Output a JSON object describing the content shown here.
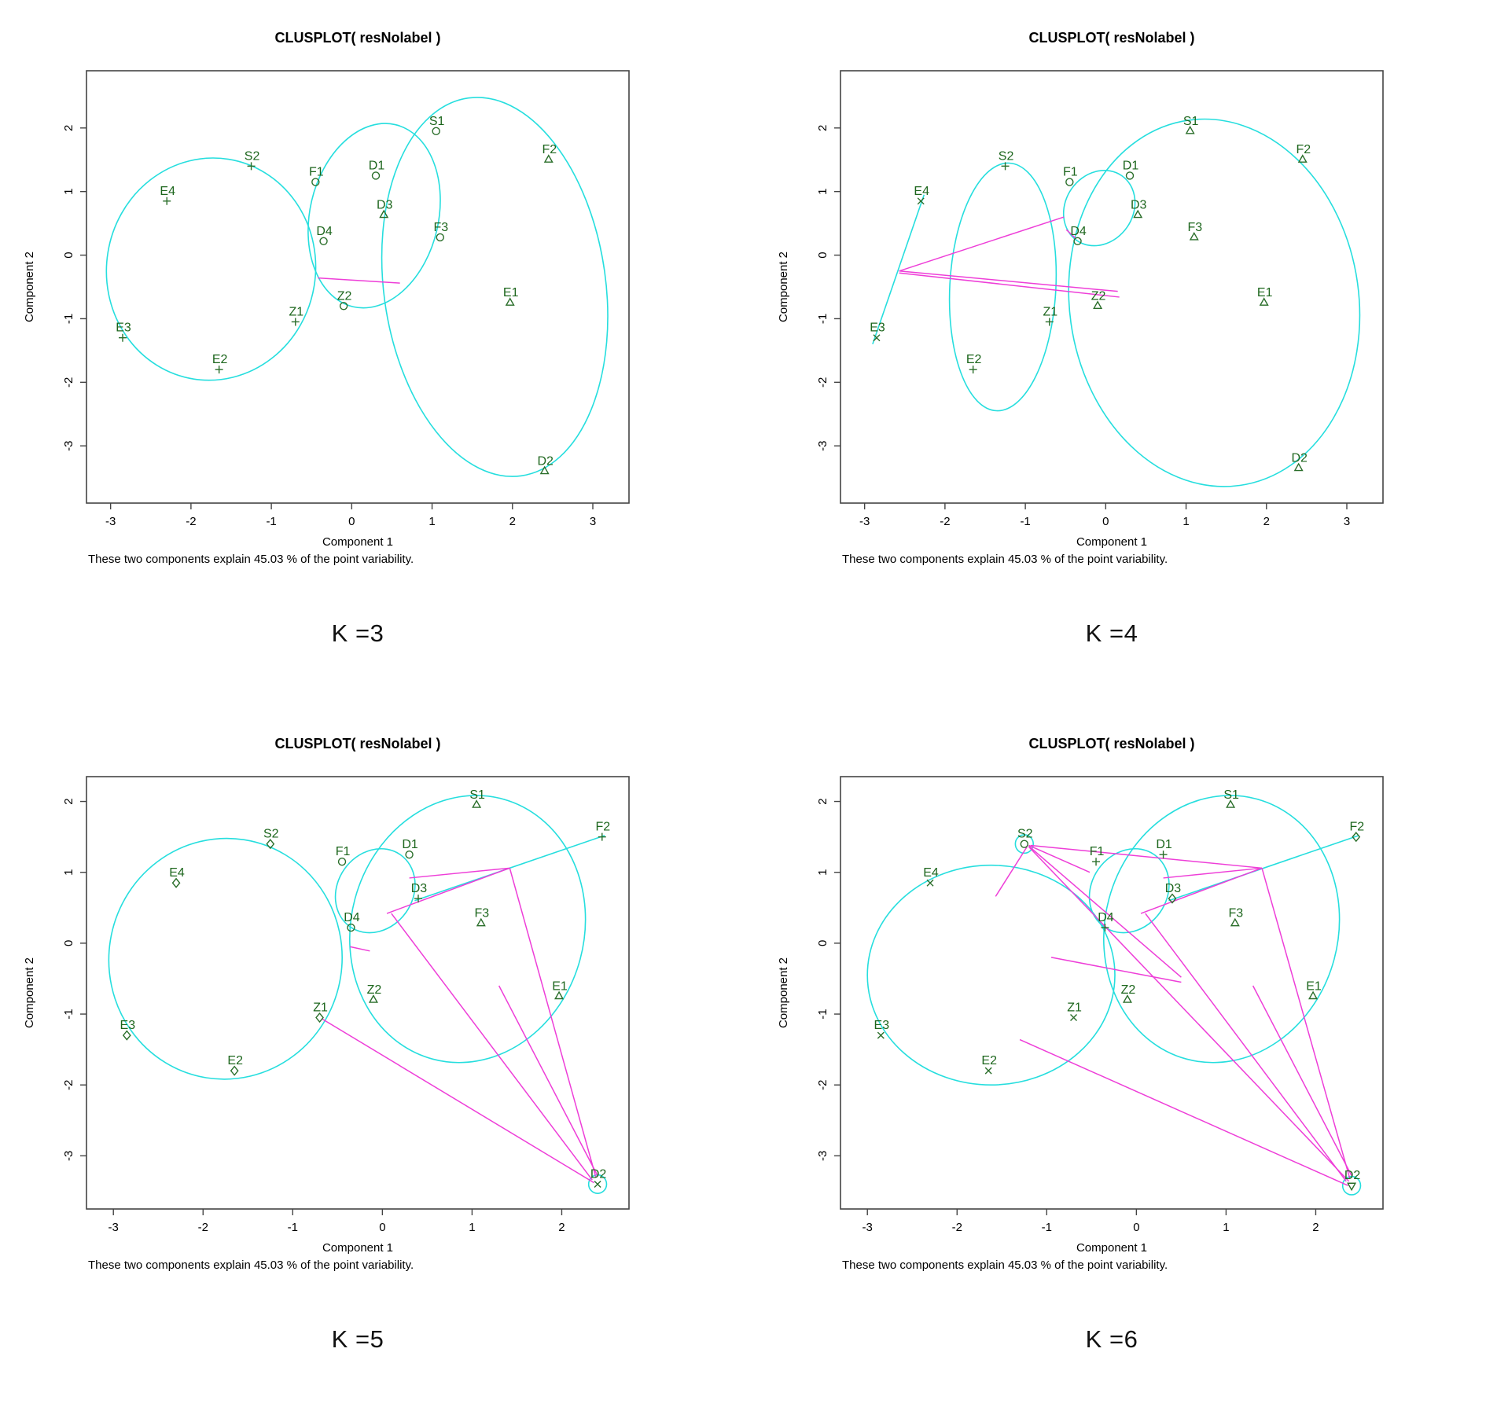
{
  "chart_data": {
    "type": "scatter",
    "description": "Four R clusplot cluster plots (PAM results) for K=3,4,5,6 on the same 15 observations",
    "colors": {
      "ellipse_cyan": "#26dede",
      "link_magenta": "#ee3ed8",
      "label_green": "#1d661d",
      "marker_green": "#2a6e2a",
      "axis": "#444444",
      "text": "#000000"
    },
    "plots": [
      {
        "k_label": "K =3",
        "title": "CLUSPLOT( resNolabel )",
        "xlabel": "Component 1",
        "ylabel": "Component 2",
        "caption": "These two components explain 45.03 % of the point variability.",
        "xlim": [
          -3.3,
          3.45
        ],
        "ylim": [
          -3.9,
          2.9
        ],
        "x_ticks": [
          -3,
          -2,
          -1,
          0,
          1,
          2,
          3
        ],
        "y_ticks": [
          2,
          1,
          0,
          -1,
          -2,
          -3
        ],
        "points": [
          {
            "label": "S1",
            "x": 1.05,
            "y": 1.95,
            "marker": "circle"
          },
          {
            "label": "F2",
            "x": 2.45,
            "y": 1.5,
            "marker": "triangle"
          },
          {
            "label": "S2",
            "x": -1.25,
            "y": 1.4,
            "marker": "plus"
          },
          {
            "label": "D1",
            "x": 0.3,
            "y": 1.25,
            "marker": "circle"
          },
          {
            "label": "F1",
            "x": -0.45,
            "y": 1.15,
            "marker": "circle"
          },
          {
            "label": "E4",
            "x": -2.3,
            "y": 0.85,
            "marker": "plus"
          },
          {
            "label": "D3",
            "x": 0.4,
            "y": 0.63,
            "marker": "triangle"
          },
          {
            "label": "F3",
            "x": 1.1,
            "y": 0.28,
            "marker": "circle"
          },
          {
            "label": "D4",
            "x": -0.35,
            "y": 0.22,
            "marker": "circle"
          },
          {
            "label": "E1",
            "x": 1.97,
            "y": -0.75,
            "marker": "triangle"
          },
          {
            "label": "Z2",
            "x": -0.1,
            "y": -0.8,
            "marker": "circle"
          },
          {
            "label": "Z1",
            "x": -0.7,
            "y": -1.05,
            "marker": "plus"
          },
          {
            "label": "E3",
            "x": -2.85,
            "y": -1.3,
            "marker": "plus"
          },
          {
            "label": "E2",
            "x": -1.65,
            "y": -1.8,
            "marker": "plus"
          },
          {
            "label": "D2",
            "x": 2.4,
            "y": -3.4,
            "marker": "triangle"
          }
        ],
        "ellipses": [
          {
            "cx": -1.75,
            "cy": -0.22,
            "rx": 1.3,
            "ry": 1.75,
            "rot": 9
          },
          {
            "cx": 0.28,
            "cy": 0.62,
            "rx": 0.8,
            "ry": 1.47,
            "rot": 13
          },
          {
            "cx": 1.78,
            "cy": -0.5,
            "rx": 1.38,
            "ry": 3.0,
            "rot": -8
          }
        ],
        "cluster_lines": [],
        "center_links": [
          [
            -0.42,
            -0.36,
            0.6,
            -0.44
          ]
        ]
      },
      {
        "k_label": "K =4",
        "title": "CLUSPLOT( resNolabel )",
        "xlabel": "Component 1",
        "ylabel": "Component 2",
        "caption": "These two components explain 45.03 % of the point variability.",
        "xlim": [
          -3.3,
          3.45
        ],
        "ylim": [
          -3.9,
          2.9
        ],
        "x_ticks": [
          -3,
          -2,
          -1,
          0,
          1,
          2,
          3
        ],
        "y_ticks": [
          2,
          1,
          0,
          -1,
          -2,
          -3
        ],
        "points": [
          {
            "label": "S1",
            "x": 1.05,
            "y": 1.95,
            "marker": "triangle"
          },
          {
            "label": "F2",
            "x": 2.45,
            "y": 1.5,
            "marker": "triangle"
          },
          {
            "label": "S2",
            "x": -1.25,
            "y": 1.4,
            "marker": "plus"
          },
          {
            "label": "D1",
            "x": 0.3,
            "y": 1.25,
            "marker": "circle"
          },
          {
            "label": "F1",
            "x": -0.45,
            "y": 1.15,
            "marker": "circle"
          },
          {
            "label": "E4",
            "x": -2.3,
            "y": 0.85,
            "marker": "cross"
          },
          {
            "label": "D3",
            "x": 0.4,
            "y": 0.63,
            "marker": "triangle"
          },
          {
            "label": "F3",
            "x": 1.1,
            "y": 0.28,
            "marker": "triangle"
          },
          {
            "label": "D4",
            "x": -0.35,
            "y": 0.22,
            "marker": "circle"
          },
          {
            "label": "E1",
            "x": 1.97,
            "y": -0.75,
            "marker": "triangle"
          },
          {
            "label": "Z2",
            "x": -0.1,
            "y": -0.8,
            "marker": "triangle"
          },
          {
            "label": "Z1",
            "x": -0.7,
            "y": -1.05,
            "marker": "plus"
          },
          {
            "label": "E3",
            "x": -2.85,
            "y": -1.3,
            "marker": "cross"
          },
          {
            "label": "E2",
            "x": -1.65,
            "y": -1.8,
            "marker": "plus"
          },
          {
            "label": "D2",
            "x": 2.4,
            "y": -3.35,
            "marker": "triangle"
          }
        ],
        "ellipses": [
          {
            "cx": -1.28,
            "cy": -0.5,
            "rx": 0.66,
            "ry": 1.95,
            "rot": 3
          },
          {
            "cx": -0.08,
            "cy": 0.74,
            "rx": 0.42,
            "ry": 0.62,
            "rot": 35
          },
          {
            "cx": 1.35,
            "cy": -0.75,
            "rx": 1.8,
            "ry": 2.9,
            "rot": -8
          }
        ],
        "cluster_lines": [
          [
            -2.26,
            0.95,
            -2.9,
            -1.4
          ]
        ],
        "center_links": [
          [
            -2.57,
            -0.25,
            -0.52,
            0.6
          ],
          [
            -0.49,
            0.4,
            -0.37,
            0.26
          ],
          [
            -2.57,
            -0.25,
            0.15,
            -0.57
          ],
          [
            -2.57,
            -0.28,
            0.17,
            -0.66
          ]
        ]
      },
      {
        "k_label": "K =5",
        "title": "CLUSPLOT( resNolabel )",
        "xlabel": "Component 1",
        "ylabel": "Component 2",
        "caption": "These two components explain 45.03 % of the point variability.",
        "xlim": [
          -3.3,
          2.75
        ],
        "ylim": [
          -3.75,
          2.35
        ],
        "x_ticks": [
          -3,
          -2,
          -1,
          0,
          1,
          2
        ],
        "y_ticks": [
          2,
          1,
          0,
          -1,
          -2,
          -3
        ],
        "points": [
          {
            "label": "S1",
            "x": 1.05,
            "y": 1.95,
            "marker": "triangle"
          },
          {
            "label": "F2",
            "x": 2.45,
            "y": 1.5,
            "marker": "plus"
          },
          {
            "label": "S2",
            "x": -1.25,
            "y": 1.4,
            "marker": "diamond"
          },
          {
            "label": "D1",
            "x": 0.3,
            "y": 1.25,
            "marker": "circle"
          },
          {
            "label": "F1",
            "x": -0.45,
            "y": 1.15,
            "marker": "circle"
          },
          {
            "label": "E4",
            "x": -2.3,
            "y": 0.85,
            "marker": "diamond"
          },
          {
            "label": "D3",
            "x": 0.4,
            "y": 0.63,
            "marker": "plus"
          },
          {
            "label": "F3",
            "x": 1.1,
            "y": 0.28,
            "marker": "triangle"
          },
          {
            "label": "D4",
            "x": -0.35,
            "y": 0.22,
            "marker": "circle"
          },
          {
            "label": "E1",
            "x": 1.97,
            "y": -0.75,
            "marker": "triangle"
          },
          {
            "label": "Z2",
            "x": -0.1,
            "y": -0.8,
            "marker": "triangle"
          },
          {
            "label": "Z1",
            "x": -0.7,
            "y": -1.05,
            "marker": "diamond"
          },
          {
            "label": "E3",
            "x": -2.85,
            "y": -1.3,
            "marker": "diamond"
          },
          {
            "label": "E2",
            "x": -1.65,
            "y": -1.8,
            "marker": "diamond"
          },
          {
            "label": "D2",
            "x": 2.4,
            "y": -3.4,
            "marker": "cross"
          }
        ],
        "ellipses": [
          {
            "cx": -1.75,
            "cy": -0.22,
            "rx": 1.3,
            "ry": 1.7,
            "rot": 9
          },
          {
            "cx": -0.08,
            "cy": 0.74,
            "rx": 0.42,
            "ry": 0.62,
            "rot": 35
          },
          {
            "cx": 0.95,
            "cy": 0.2,
            "rx": 1.3,
            "ry": 1.9,
            "rot": 15
          },
          {
            "cx": 2.4,
            "cy": -3.4,
            "rx": 0.1,
            "ry": 0.13,
            "rot": 0
          }
        ],
        "cluster_lines": [
          [
            0.36,
            0.6,
            2.48,
            1.52
          ]
        ],
        "center_links": [
          [
            0.3,
            0.92,
            1.42,
            1.06
          ],
          [
            1.42,
            1.06,
            0.05,
            0.42
          ],
          [
            1.42,
            1.06,
            2.38,
            -3.3
          ],
          [
            -0.67,
            -1.07,
            2.36,
            -3.38
          ],
          [
            0.1,
            0.42,
            2.34,
            -3.34
          ],
          [
            1.3,
            -0.6,
            2.4,
            -3.28
          ],
          [
            -0.36,
            -0.05,
            -0.14,
            -0.11
          ]
        ]
      },
      {
        "k_label": "K =6",
        "title": "CLUSPLOT( resNolabel )",
        "xlabel": "Component 1",
        "ylabel": "Component 2",
        "caption": "These two components explain 45.03 % of the point variability.",
        "xlim": [
          -3.3,
          2.75
        ],
        "ylim": [
          -3.75,
          2.35
        ],
        "x_ticks": [
          -3,
          -2,
          -1,
          0,
          1,
          2
        ],
        "y_ticks": [
          2,
          1,
          0,
          -1,
          -2,
          -3
        ],
        "points": [
          {
            "label": "S1",
            "x": 1.05,
            "y": 1.95,
            "marker": "triangle"
          },
          {
            "label": "F2",
            "x": 2.45,
            "y": 1.5,
            "marker": "diamond"
          },
          {
            "label": "S2",
            "x": -1.25,
            "y": 1.4,
            "marker": "circle"
          },
          {
            "label": "D1",
            "x": 0.3,
            "y": 1.25,
            "marker": "plus"
          },
          {
            "label": "F1",
            "x": -0.45,
            "y": 1.15,
            "marker": "plus"
          },
          {
            "label": "E4",
            "x": -2.3,
            "y": 0.85,
            "marker": "cross"
          },
          {
            "label": "D3",
            "x": 0.4,
            "y": 0.63,
            "marker": "diamond"
          },
          {
            "label": "F3",
            "x": 1.1,
            "y": 0.28,
            "marker": "triangle"
          },
          {
            "label": "D4",
            "x": -0.35,
            "y": 0.22,
            "marker": "plus"
          },
          {
            "label": "E1",
            "x": 1.97,
            "y": -0.75,
            "marker": "triangle"
          },
          {
            "label": "Z2",
            "x": -0.1,
            "y": -0.8,
            "marker": "triangle"
          },
          {
            "label": "Z1",
            "x": -0.7,
            "y": -1.05,
            "marker": "cross"
          },
          {
            "label": "E3",
            "x": -2.85,
            "y": -1.3,
            "marker": "cross"
          },
          {
            "label": "E2",
            "x": -1.65,
            "y": -1.8,
            "marker": "cross"
          },
          {
            "label": "D2",
            "x": 2.4,
            "y": -3.42,
            "marker": "tri_down"
          }
        ],
        "ellipses": [
          {
            "cx": -1.62,
            "cy": -0.45,
            "rx": 1.38,
            "ry": 1.55,
            "rot": 0
          },
          {
            "cx": -1.25,
            "cy": 1.4,
            "rx": 0.1,
            "ry": 0.13,
            "rot": 0
          },
          {
            "cx": -0.08,
            "cy": 0.74,
            "rx": 0.42,
            "ry": 0.62,
            "rot": 35
          },
          {
            "cx": 0.95,
            "cy": 0.2,
            "rx": 1.3,
            "ry": 1.9,
            "rot": 15
          },
          {
            "cx": 2.4,
            "cy": -3.42,
            "rx": 0.1,
            "ry": 0.13,
            "rot": 0
          }
        ],
        "cluster_lines": [
          [
            0.36,
            0.6,
            2.48,
            1.52
          ]
        ],
        "center_links": [
          [
            -1.22,
            1.36,
            -1.57,
            0.66
          ],
          [
            -1.2,
            1.38,
            -0.52,
            1.0
          ],
          [
            -1.18,
            1.38,
            1.4,
            1.06
          ],
          [
            -1.2,
            1.36,
            2.37,
            -3.36
          ],
          [
            -1.2,
            1.37,
            0.5,
            -0.48
          ],
          [
            0.3,
            0.92,
            1.4,
            1.06
          ],
          [
            1.4,
            1.06,
            0.05,
            0.42
          ],
          [
            1.4,
            1.06,
            2.38,
            -3.32
          ],
          [
            -1.3,
            -1.36,
            2.36,
            -3.42
          ],
          [
            0.1,
            0.42,
            2.34,
            -3.36
          ],
          [
            1.3,
            -0.6,
            2.4,
            -3.28
          ],
          [
            -0.95,
            -0.2,
            0.5,
            -0.55
          ]
        ]
      }
    ]
  }
}
